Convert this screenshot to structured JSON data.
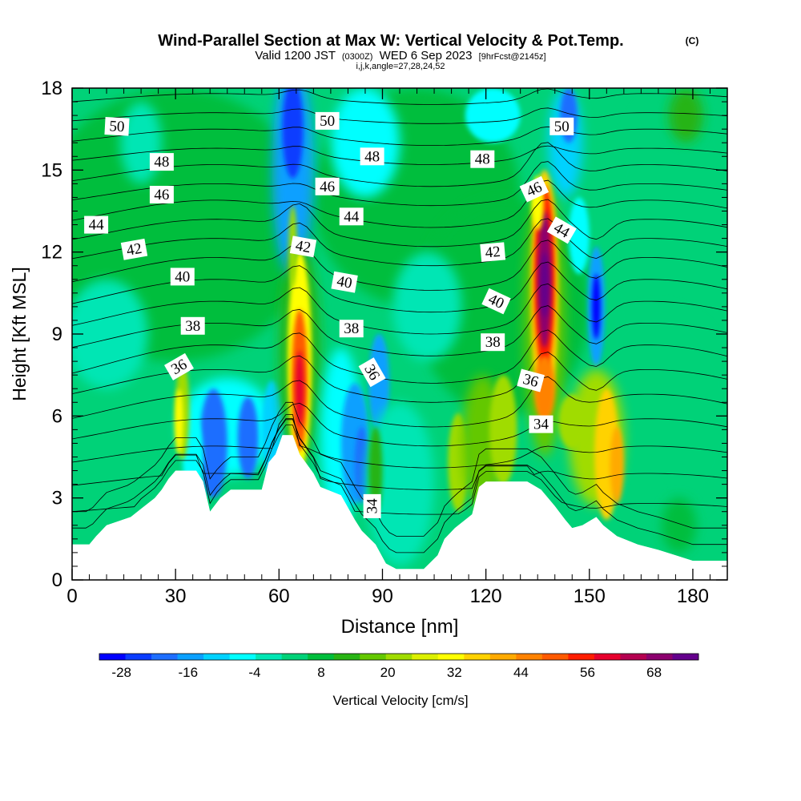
{
  "chart_data": {
    "type": "heatmap",
    "title": "Wind-Parallel Section at Max W: Vertical Velocity & Pot.Temp.",
    "title_mark": "(C)",
    "subtitle_parts": [
      "Valid 1200 JST",
      "(0300Z)",
      "WED 6 Sep 2023",
      "[9hrFcst@2145z]"
    ],
    "subtitle2": "i,j,k,angle=27,28,24,52",
    "xlabel": "Distance [nm]",
    "ylabel": "Height [Kft MSL]",
    "xlim": [
      0,
      190
    ],
    "ylim": [
      0,
      18
    ],
    "x_ticks": [
      "0",
      "30",
      "60",
      "90",
      "120",
      "150",
      "180"
    ],
    "y_ticks": [
      "0",
      "3",
      "6",
      "9",
      "12",
      "15",
      "18"
    ],
    "colorbar": {
      "label": "Vertical Velocity [cm/s]",
      "tick_labels": [
        "-28",
        "-16",
        "-4",
        "8",
        "20",
        "32",
        "44",
        "56",
        "68"
      ],
      "range": [
        -32,
        76
      ],
      "colors": [
        "#0000ff",
        "#0a3cff",
        "#1e6eff",
        "#0aa0ff",
        "#00d2ff",
        "#00ffff",
        "#00e6b4",
        "#00d278",
        "#00be3c",
        "#28b414",
        "#64c800",
        "#a0dc00",
        "#dcf000",
        "#ffff00",
        "#ffd200",
        "#ffaa00",
        "#ff8200",
        "#ff5a00",
        "#ff1e00",
        "#e6002d",
        "#b40050",
        "#8c006e",
        "#64008c"
      ]
    },
    "terrain_kft": [
      [
        0,
        1.3
      ],
      [
        5,
        1.3
      ],
      [
        7,
        1.6
      ],
      [
        10,
        2.0
      ],
      [
        17,
        2.3
      ],
      [
        20,
        2.6
      ],
      [
        24,
        3.0
      ],
      [
        26,
        3.3
      ],
      [
        28,
        3.7
      ],
      [
        30,
        4.0
      ],
      [
        36,
        4.0
      ],
      [
        38,
        3.6
      ],
      [
        40,
        2.5
      ],
      [
        43,
        3.0
      ],
      [
        46,
        3.3
      ],
      [
        55,
        3.3
      ],
      [
        57,
        4.3
      ],
      [
        59,
        4.6
      ],
      [
        61,
        5.3
      ],
      [
        64,
        5.3
      ],
      [
        66,
        4.6
      ],
      [
        70,
        3.9
      ],
      [
        72,
        3.4
      ],
      [
        78,
        3.1
      ],
      [
        82,
        2.2
      ],
      [
        84,
        1.8
      ],
      [
        88,
        1.3
      ],
      [
        91,
        0.6
      ],
      [
        94,
        0.4
      ],
      [
        102,
        0.4
      ],
      [
        106,
        0.9
      ],
      [
        108,
        1.5
      ],
      [
        111,
        1.9
      ],
      [
        116,
        2.4
      ],
      [
        118,
        3.4
      ],
      [
        120,
        3.6
      ],
      [
        132,
        3.6
      ],
      [
        136,
        3.3
      ],
      [
        140,
        2.7
      ],
      [
        143,
        2.2
      ],
      [
        145,
        1.9
      ],
      [
        148,
        2.0
      ],
      [
        152,
        2.3
      ],
      [
        154,
        2.0
      ],
      [
        158,
        1.6
      ],
      [
        164,
        1.3
      ],
      [
        170,
        1.1
      ],
      [
        175,
        0.9
      ],
      [
        180,
        0.7
      ],
      [
        190,
        0.7
      ]
    ],
    "vertical_velocity_features": [
      {
        "x": 66,
        "z": 7.0,
        "peak_cm_s": 60
      },
      {
        "x": 137,
        "z": 10.8,
        "peak_cm_s": 72
      },
      {
        "x": 155,
        "z": 4.8,
        "peak_cm_s": 36
      },
      {
        "x": 32,
        "z": 6.0,
        "peak_cm_s": 28
      },
      {
        "x": 152,
        "z": 10.0,
        "peak_cm_s": -28
      },
      {
        "x": 41,
        "z": 5.0,
        "peak_cm_s": -22
      },
      {
        "x": 64,
        "z": 16.5,
        "peak_cm_s": -25
      }
    ],
    "contour_labels": [
      {
        "text": "50",
        "x": 13,
        "z": 16.6,
        "angle": 3
      },
      {
        "text": "50",
        "x": 74,
        "z": 16.8,
        "angle": 0
      },
      {
        "text": "50",
        "x": 142,
        "z": 16.6,
        "angle": 0
      },
      {
        "text": "48",
        "x": 26,
        "z": 15.3,
        "angle": 0
      },
      {
        "text": "48",
        "x": 87,
        "z": 15.5,
        "angle": 0
      },
      {
        "text": "48",
        "x": 119,
        "z": 15.4,
        "angle": 0
      },
      {
        "text": "46",
        "x": 26,
        "z": 14.1,
        "angle": 0
      },
      {
        "text": "46",
        "x": 74,
        "z": 14.4,
        "angle": 0
      },
      {
        "text": "46",
        "x": 134,
        "z": 14.3,
        "angle": -25
      },
      {
        "text": "44",
        "x": 7,
        "z": 13.0,
        "angle": 0
      },
      {
        "text": "44",
        "x": 81,
        "z": 13.3,
        "angle": 0
      },
      {
        "text": "44",
        "x": 142,
        "z": 12.8,
        "angle": 30
      },
      {
        "text": "42",
        "x": 18,
        "z": 12.1,
        "angle": -10
      },
      {
        "text": "42",
        "x": 67,
        "z": 12.2,
        "angle": 10
      },
      {
        "text": "42",
        "x": 122,
        "z": 12.0,
        "angle": -5
      },
      {
        "text": "40",
        "x": 32,
        "z": 11.1,
        "angle": 0
      },
      {
        "text": "40",
        "x": 79,
        "z": 10.9,
        "angle": 10
      },
      {
        "text": "40",
        "x": 123,
        "z": 10.2,
        "angle": 25
      },
      {
        "text": "38",
        "x": 35,
        "z": 9.3,
        "angle": 0
      },
      {
        "text": "38",
        "x": 81,
        "z": 9.2,
        "angle": 0
      },
      {
        "text": "38",
        "x": 122,
        "z": 8.7,
        "angle": 0
      },
      {
        "text": "36",
        "x": 31,
        "z": 7.8,
        "angle": -30
      },
      {
        "text": "36",
        "x": 87,
        "z": 7.6,
        "angle": 60
      },
      {
        "text": "36",
        "x": 133,
        "z": 7.3,
        "angle": 15
      },
      {
        "text": "34",
        "x": 136,
        "z": 5.7,
        "angle": 0
      },
      {
        "text": "34",
        "x": 87,
        "z": 2.7,
        "angle": -90
      }
    ]
  }
}
